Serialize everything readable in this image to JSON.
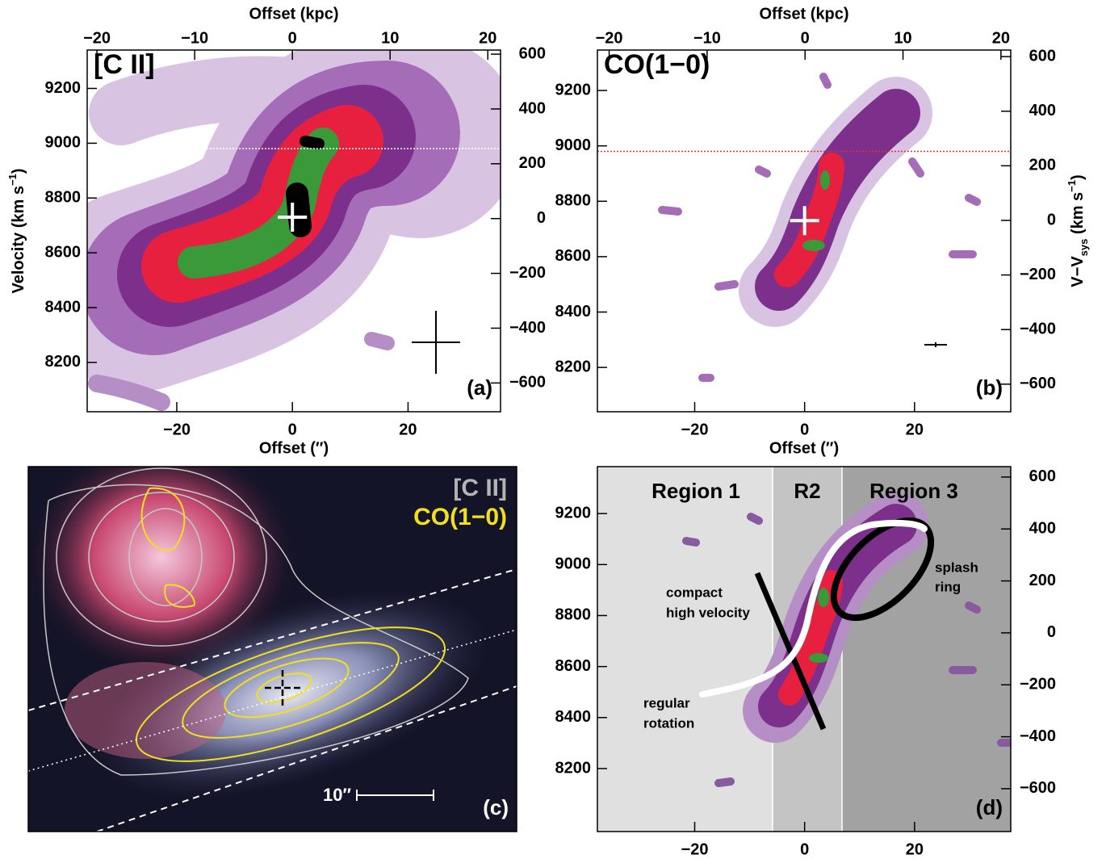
{
  "chart_data": [
    {
      "type": "contour",
      "title": "[C II]",
      "panel_label": "(a)",
      "xlabel": "Offset (′′)",
      "x2label": "Offset (kpc)",
      "ylabel": {
        "text": "Velocity (km s",
        "sup": "−1",
        "end": ")"
      },
      "xlim": [
        -35.5,
        36
      ],
      "xticks": [
        {
          "value": -20,
          "label": "−20"
        },
        0,
        20
      ],
      "x2lim": [
        -21,
        21.3
      ],
      "x2ticks": [
        {
          "value": -20,
          "label": "−20"
        },
        {
          "value": -10,
          "label": "−10"
        },
        0,
        10,
        20
      ],
      "ylim": [
        8020,
        9340
      ],
      "yticks": [
        8200,
        8400,
        8600,
        8800,
        9000,
        9200
      ],
      "y2lim": [
        -705,
        615
      ],
      "y2ticks": [
        {
          "value": -600,
          "label": "−600"
        },
        {
          "value": -400,
          "label": "−400"
        },
        {
          "value": -200,
          "label": "−200"
        },
        0,
        200,
        400,
        600
      ],
      "reference_velocity": 8980,
      "reference_color": "#ffffff",
      "center": [
        0,
        8730
      ]
    },
    {
      "type": "contour",
      "title": "CO(1−0)",
      "panel_label": "(b)",
      "xlabel": "Offset (′′)",
      "x2label": "Offset (kpc)",
      "y2label": {
        "text": "V−V",
        "sub": "sys",
        "mid": " (km s",
        "sup": "−1",
        "end": ")"
      },
      "xlim": [
        -37.7,
        37.5
      ],
      "xticks": [
        {
          "value": -20,
          "label": "−20"
        },
        0,
        20
      ],
      "x2lim": [
        -21.2,
        21
      ],
      "x2ticks": [
        {
          "value": -20,
          "label": "−20"
        },
        {
          "value": -10,
          "label": "−10"
        },
        0,
        10,
        20
      ],
      "ylim": [
        8040,
        9346
      ],
      "yticks": [
        8200,
        8400,
        8600,
        8800,
        9000,
        9200
      ],
      "y2lim": [
        -701,
        624
      ],
      "y2ticks": [
        {
          "value": -600,
          "label": "−600"
        },
        {
          "value": -400,
          "label": "−400"
        },
        {
          "value": -200,
          "label": "−200"
        },
        0,
        200,
        400,
        600
      ],
      "reference_velocity": 8980,
      "reference_color": "#e03030",
      "center": [
        0,
        8730
      ]
    },
    {
      "type": "image",
      "title": "[C II]",
      "subtitle": "CO(1−0)",
      "panel_label": "(c)",
      "scale_label": "10′′"
    },
    {
      "type": "contour",
      "panel_label": "(d)",
      "xlabel": "Offset (′′)",
      "xlim": [
        -37.7,
        37.5
      ],
      "xticks": [
        {
          "value": -20,
          "label": "−20"
        },
        0,
        20
      ],
      "ylim": [
        7953,
        9384
      ],
      "yticks": [
        8200,
        8400,
        8600,
        8800,
        9000,
        9200
      ],
      "y2lim": [
        -765,
        640
      ],
      "y2ticks": [
        {
          "value": -600,
          "label": "−600"
        },
        {
          "value": -400,
          "label": "−400"
        },
        {
          "value": -200,
          "label": "−200"
        },
        0,
        200,
        400,
        600
      ],
      "annotations": [
        "Region 1",
        "R2",
        "Region 3",
        "compact",
        "high velocity",
        "splash",
        "ring",
        "regular",
        "rotation"
      ]
    }
  ]
}
